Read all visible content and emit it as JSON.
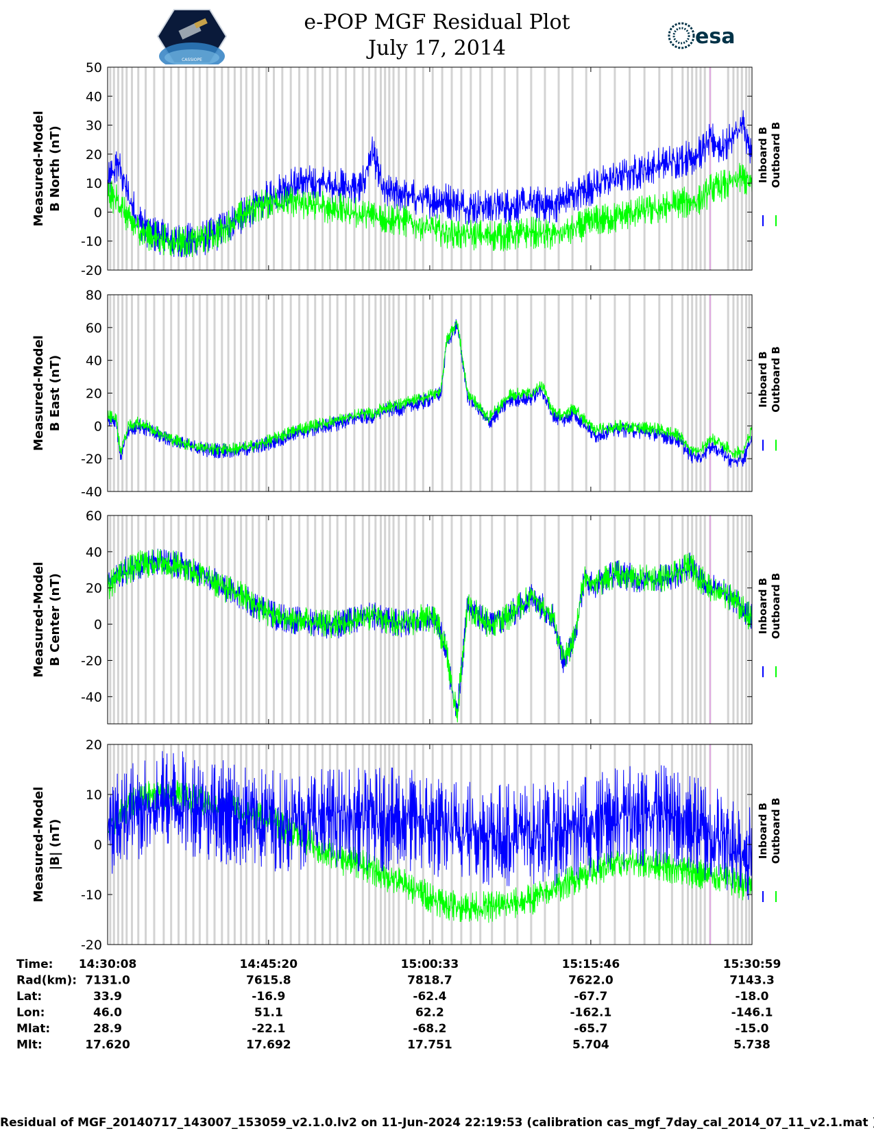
{
  "header": {
    "title_line1": "e-POP MGF Residual Plot",
    "title_line2": "July 17, 2014",
    "logo_left_text": "CASSIOPE",
    "logo_right_text": "esa"
  },
  "colors": {
    "inboard": "#0000ff",
    "outboard": "#00ff00",
    "gap_bands": "#d3d3d3",
    "marker": "#ee82ee",
    "frame": "#000000"
  },
  "chart_data": [
    {
      "type": "line",
      "ylabel": "Measured-Model B North (nT)",
      "ylabel_lines": [
        "Measured-Model",
        "B North (nT)"
      ],
      "ylim": [
        -20,
        50
      ],
      "yticks": [
        -20,
        -10,
        0,
        10,
        20,
        30,
        40,
        50
      ],
      "xlim": [
        0,
        60.85
      ],
      "x": [
        0,
        1,
        2,
        3,
        4,
        6,
        8,
        10,
        12,
        14,
        16,
        18,
        20,
        22,
        24,
        25,
        26,
        28,
        30,
        32,
        34,
        36,
        38,
        40,
        42,
        44,
        46,
        48,
        50,
        52,
        54,
        56,
        57,
        58,
        59,
        60,
        60.85
      ],
      "series": [
        {
          "name": "Inboard B",
          "color": "#0000ff",
          "noise": 4,
          "values": [
            10,
            17,
            5,
            -3,
            -7,
            -10,
            -10,
            -8,
            -3,
            2,
            7,
            10,
            10,
            9,
            8,
            22,
            7,
            6,
            4,
            4,
            2,
            2,
            2,
            3,
            2,
            6,
            9,
            12,
            14,
            16,
            18,
            20,
            25,
            22,
            26,
            30,
            18
          ]
        },
        {
          "name": "Outboard B",
          "color": "#00ff00",
          "noise": 3.5,
          "values": [
            6,
            4,
            -3,
            -6,
            -8,
            -10,
            -10,
            -8,
            -3,
            2,
            4,
            3,
            2,
            1,
            -1,
            -1,
            -2,
            -3,
            -5,
            -7,
            -8,
            -8,
            -8,
            -7,
            -8,
            -6,
            -3,
            -2,
            0,
            1,
            3,
            4,
            8,
            9,
            10,
            12,
            9
          ]
        }
      ]
    },
    {
      "type": "line",
      "ylabel": "Measured-Model B East (nT)",
      "ylabel_lines": [
        "Measured-Model",
        "B East (nT)"
      ],
      "ylim": [
        -40,
        80
      ],
      "yticks": [
        -40,
        -20,
        0,
        20,
        40,
        60,
        80
      ],
      "xlim": [
        0,
        60.85
      ],
      "x": [
        0,
        0.8,
        1.2,
        2,
        3,
        4,
        6,
        8,
        10,
        12,
        14,
        16,
        18,
        20,
        22,
        24,
        25,
        26,
        28,
        30,
        31.5,
        32,
        33,
        34,
        35,
        36,
        38,
        40,
        41,
        42,
        43,
        44,
        46,
        48,
        50,
        52,
        54,
        55,
        56,
        57,
        58,
        59,
        60,
        60.85
      ],
      "series": [
        {
          "name": "Inboard B",
          "color": "#0000ff",
          "noise": 3,
          "values": [
            4,
            3,
            -18,
            -2,
            0,
            -3,
            -9,
            -13,
            -15,
            -15,
            -13,
            -9,
            -4,
            -1,
            2,
            6,
            5,
            9,
            11,
            15,
            20,
            50,
            62,
            18,
            10,
            2,
            16,
            17,
            22,
            7,
            3,
            8,
            -6,
            -2,
            -3,
            -5,
            -9,
            -18,
            -19,
            -12,
            -16,
            -22,
            -21,
            -8
          ]
        },
        {
          "name": "Outboard B",
          "color": "#00ff00",
          "noise": 2.5,
          "values": [
            6,
            5,
            -16,
            0,
            2,
            -1,
            -8,
            -12,
            -14,
            -14,
            -12,
            -7,
            -2,
            1,
            4,
            8,
            7,
            11,
            14,
            17,
            22,
            52,
            64,
            20,
            12,
            5,
            19,
            20,
            25,
            10,
            6,
            11,
            -3,
            0,
            -1,
            -2,
            -6,
            -14,
            -15,
            -7,
            -11,
            -16,
            -16,
            -2
          ]
        }
      ]
    },
    {
      "type": "line",
      "ylabel": "Measured-Model B Center (nT)",
      "ylabel_lines": [
        "Measured-Model",
        "B Center (nT)"
      ],
      "ylim": [
        -55,
        60
      ],
      "yticks": [
        -40,
        -20,
        0,
        20,
        40,
        60
      ],
      "xlim": [
        0,
        60.85
      ],
      "x": [
        0,
        1,
        2,
        3,
        5,
        7,
        9,
        11,
        13,
        14,
        15,
        16,
        18,
        20,
        22,
        24,
        25,
        26,
        28,
        30,
        31,
        32,
        32.5,
        33,
        34,
        36,
        38,
        40,
        42,
        43,
        44,
        45,
        46,
        48,
        50,
        52,
        54,
        55,
        56,
        57,
        58,
        59,
        60,
        60.85
      ],
      "series": [
        {
          "name": "Inboard B",
          "color": "#0000ff",
          "noise": 5,
          "values": [
            22,
            28,
            30,
            33,
            34,
            32,
            27,
            20,
            15,
            10,
            7,
            4,
            2,
            0,
            0,
            3,
            5,
            2,
            0,
            4,
            2,
            -15,
            -35,
            -50,
            10,
            0,
            5,
            15,
            5,
            -20,
            -10,
            25,
            22,
            28,
            25,
            25,
            28,
            33,
            25,
            20,
            18,
            14,
            8,
            5
          ]
        },
        {
          "name": "Outboard B",
          "color": "#00ff00",
          "noise": 5,
          "values": [
            20,
            27,
            30,
            33,
            34,
            32,
            27,
            20,
            15,
            10,
            7,
            4,
            2,
            0,
            0,
            3,
            5,
            2,
            0,
            4,
            2,
            -15,
            -35,
            -50,
            10,
            0,
            5,
            15,
            5,
            -20,
            -10,
            25,
            22,
            28,
            25,
            25,
            28,
            33,
            25,
            20,
            18,
            14,
            8,
            3
          ]
        }
      ]
    },
    {
      "type": "line",
      "ylabel": "Measured-Model |B| (nT)",
      "ylabel_lines": [
        "Measured-Model",
        "|B| (nT)"
      ],
      "ylim": [
        -20,
        20
      ],
      "yticks": [
        -20,
        -10,
        0,
        10,
        20
      ],
      "xlim": [
        0,
        60.85
      ],
      "x": [
        0,
        2,
        4,
        6,
        8,
        10,
        12,
        14,
        16,
        18,
        20,
        22,
        24,
        26,
        28,
        30,
        32,
        34,
        36,
        38,
        40,
        42,
        44,
        46,
        48,
        50,
        52,
        54,
        56,
        58,
        60,
        60.85
      ],
      "series": [
        {
          "name": "Outboard B",
          "color": "#00ff00",
          "noise": 2,
          "values": [
            3,
            8,
            10,
            10,
            9,
            8,
            7,
            6,
            4,
            2,
            -1,
            -3,
            -4,
            -6,
            -8,
            -10,
            -12,
            -12.5,
            -12.5,
            -12,
            -11,
            -9,
            -7,
            -5,
            -4,
            -3.5,
            -4,
            -5,
            -6,
            -6.5,
            -8,
            -8
          ]
        },
        {
          "name": "Inboard B",
          "color": "#0000ff",
          "noise": 6.5,
          "values": [
            2,
            6,
            8,
            9,
            8,
            7,
            6,
            5,
            5,
            5,
            5,
            5,
            5,
            5,
            5,
            4,
            3,
            3,
            2,
            2,
            2,
            2,
            3,
            4,
            5,
            6,
            6,
            5,
            3,
            1,
            -1,
            -2
          ]
        }
      ]
    }
  ],
  "legend": {
    "inboard_label": "Inboard B",
    "outboard_label": "Outboard B"
  },
  "ephemeris": {
    "row_labels": [
      "Time:",
      "Rad(km):",
      "Lat:",
      "Lon:",
      "Mlat:",
      "Mlt:"
    ],
    "columns": [
      {
        "x": 0,
        "values": [
          "14:30:08",
          "7131.0",
          "33.9",
          "46.0",
          "28.9",
          "17.620"
        ]
      },
      {
        "x": 15.2,
        "values": [
          "14:45:20",
          "7615.8",
          "-16.9",
          "51.1",
          "-22.1",
          "17.692"
        ]
      },
      {
        "x": 30.42,
        "values": [
          "15:00:33",
          "7818.7",
          "-62.4",
          "62.2",
          "-68.2",
          "17.751"
        ]
      },
      {
        "x": 45.63,
        "values": [
          "15:15:46",
          "7622.0",
          "-67.7",
          "-162.1",
          "-65.7",
          "5.704"
        ]
      },
      {
        "x": 60.85,
        "values": [
          "15:30:59",
          "7143.3",
          "-18.0",
          "-146.1",
          "-15.0",
          "5.738"
        ]
      }
    ]
  },
  "gap_bands_minutes": [
    0.15,
    0.5,
    0.9,
    1.3,
    1.7,
    2.2,
    2.8,
    3.5,
    4.3,
    5.2,
    5.9,
    6.6,
    7.3,
    8.0,
    8.6,
    9.3,
    10.0,
    10.7,
    11.3,
    11.9,
    12.5,
    13.0,
    13.6,
    14.2,
    14.9,
    15.6,
    16.4,
    17.2,
    18.0,
    18.8,
    19.5,
    20.2,
    20.9,
    21.6,
    22.4,
    23.2,
    24.0,
    24.6,
    25.2,
    25.7,
    26.1,
    26.5,
    26.9,
    27.4,
    28.1,
    28.9,
    29.7,
    30.6,
    31.5,
    32.4,
    33.3,
    34.2,
    35.1,
    36.2,
    37.4,
    38.6,
    39.9,
    41.2,
    42.5,
    43.8,
    45.1,
    46.4,
    47.8,
    49.2,
    50.6,
    52.0,
    53.2,
    54.2,
    54.7,
    55.1,
    55.5,
    55.9,
    56.3,
    56.8,
    58.5,
    59.0,
    59.4,
    59.8,
    60.2,
    60.5
  ],
  "marker_minute": 56.9,
  "footer": "Residual of MGF_20140717_143007_153059_v2.1.0.lv2 on 11-Jun-2024 22:19:53 (calibration cas_mgf_7day_cal_2014_07_11_v2.1.mat )"
}
